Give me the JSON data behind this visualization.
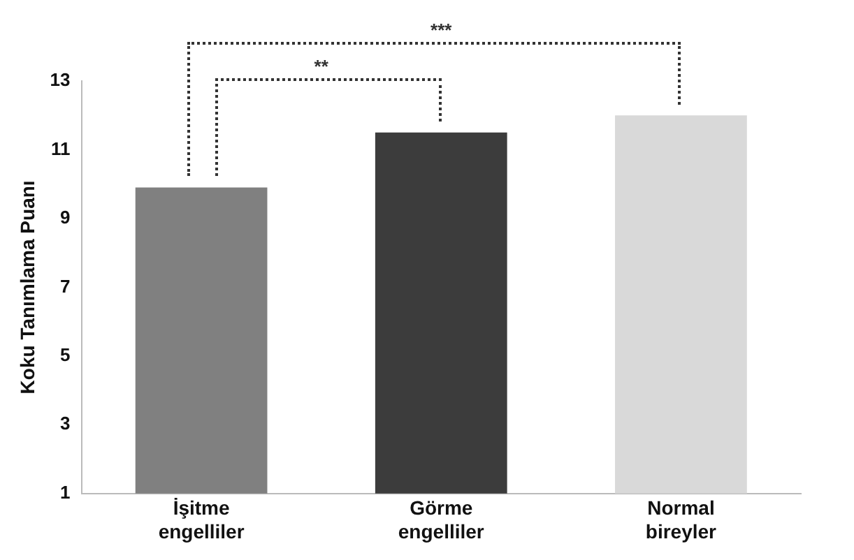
{
  "chart_data": {
    "type": "bar",
    "ylabel": "Koku Tanımlama Puanı",
    "categories": [
      "İşitme engelliler",
      "Görme engelliler",
      "Normal bireyler"
    ],
    "values": [
      9.9,
      11.5,
      12.0
    ],
    "colors": [
      "#808080",
      "#3c3c3c",
      "#d9d9d9"
    ],
    "ylim": [
      1,
      13
    ],
    "yticks": [
      1,
      3,
      5,
      7,
      9,
      11,
      13
    ],
    "grid": false,
    "legend": false,
    "annotations": [
      "**",
      "***"
    ]
  }
}
